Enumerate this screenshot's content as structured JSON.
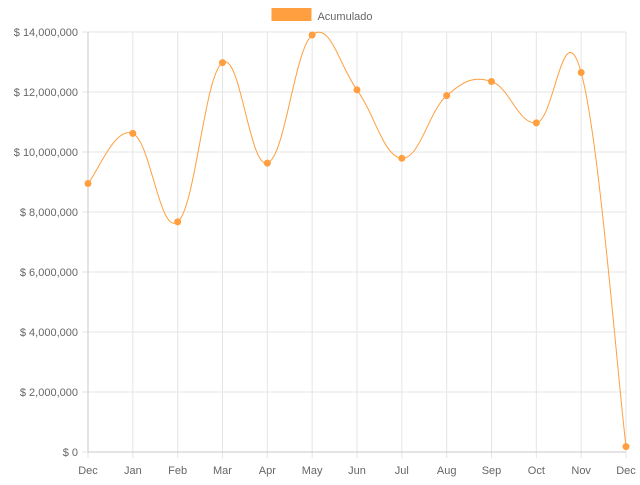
{
  "chart_data": {
    "type": "line",
    "categories": [
      "Dec",
      "Jan",
      "Feb",
      "Mar",
      "Apr",
      "May",
      "Jun",
      "Jul",
      "Aug",
      "Sep",
      "Oct",
      "Nov",
      "Dec"
    ],
    "series": [
      {
        "name": "Acumulado",
        "values": [
          8950000,
          10620000,
          7670000,
          12980000,
          9630000,
          13900000,
          12070000,
          9790000,
          11880000,
          12350000,
          10970000,
          12650000,
          180000
        ],
        "color": "#ff9f40"
      }
    ],
    "ylim": [
      0,
      14000000
    ],
    "yticks": [
      0,
      2000000,
      4000000,
      6000000,
      8000000,
      10000000,
      12000000,
      14000000
    ],
    "ytick_labels": [
      "$ 0",
      "$ 2,000,000",
      "$ 4,000,000",
      "$ 6,000,000",
      "$ 8,000,000",
      "$ 10,000,000",
      "$ 12,000,000",
      "$ 14,000,000"
    ],
    "grid": true,
    "legend_position": "top",
    "curve": "smooth"
  },
  "colors": {
    "grid": "#e5e5e5",
    "axis": "#c8c8c8",
    "tick_text": "#666666"
  }
}
